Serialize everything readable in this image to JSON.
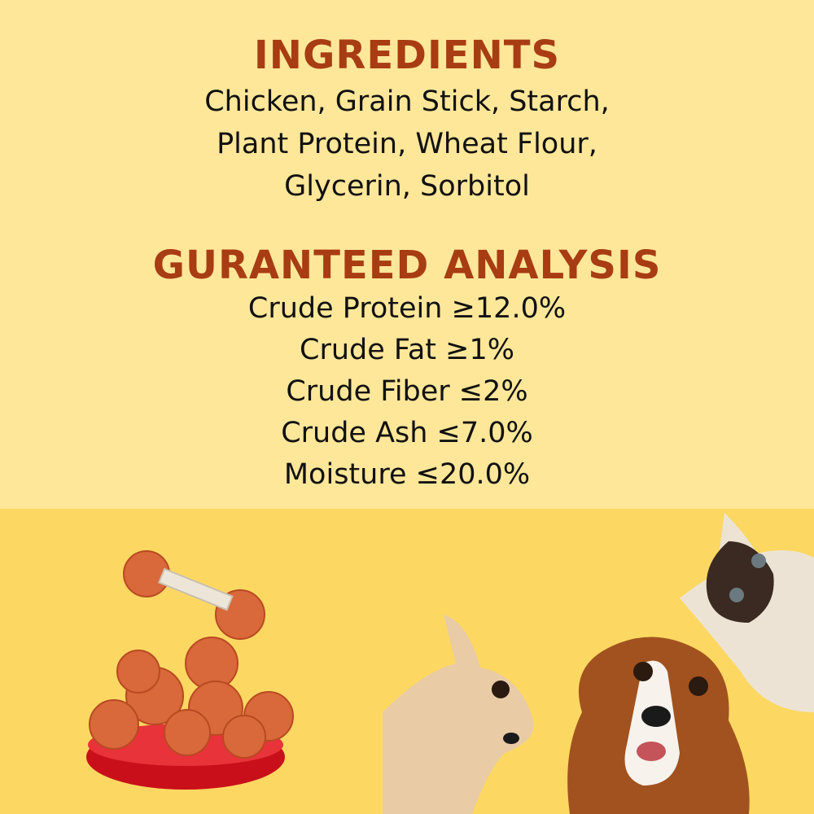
{
  "ingredients": {
    "heading": "INGREDIENTS",
    "lines": [
      "Chicken, Grain Stick, Starch,",
      "Plant Protein, Wheat Flour,",
      "Glycerin, Sorbitol"
    ]
  },
  "analysis": {
    "heading": "GURANTEED ANALYSIS",
    "lines": [
      "Crude Protein ≥12.0%",
      "Crude Fat ≥1%",
      "Crude Fiber ≤2%",
      "Crude Ash ≤7.0%",
      "Moisture ≤20.0%"
    ]
  },
  "colors": {
    "top_bg": "#FFE79A",
    "bottom_bg": "#FCD862",
    "heading": "#A83C12",
    "bowl": "#D8141E",
    "treat": "#D9683A"
  },
  "images": [
    "chicken-treats-bowl",
    "chihuahua",
    "spaniel-dog",
    "siamese-cat"
  ]
}
